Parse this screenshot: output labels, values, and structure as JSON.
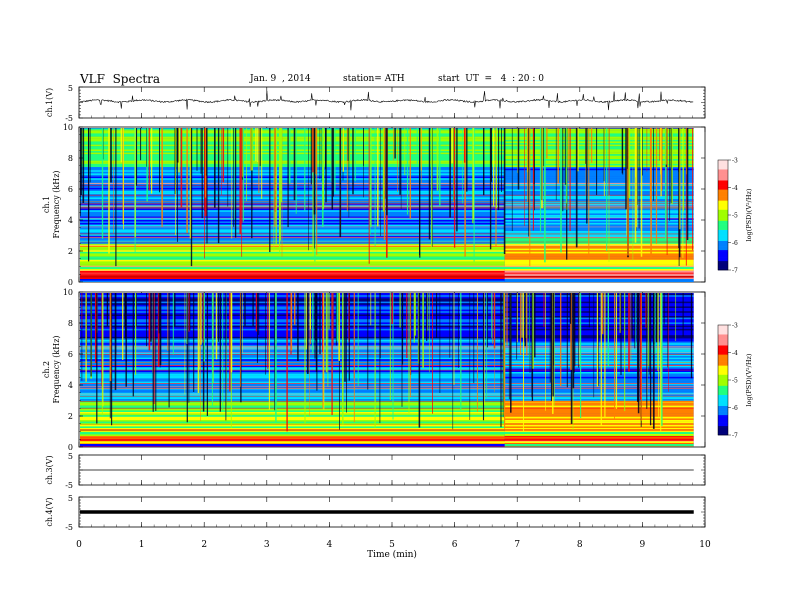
{
  "header": {
    "title": "VLF  Spectra",
    "date": "Jan. 9  , 2014",
    "station": "station= ATH",
    "start": "start  UT  =   4  : 20 : 0"
  },
  "chart_data": [
    {
      "type": "line",
      "panel": "ch.1",
      "ylabel": "ch.1(V)",
      "ylim": [
        -5,
        5
      ],
      "ytick_labels": [
        "5",
        "-5"
      ],
      "x_range_min": [
        0,
        9.82
      ],
      "series_summary": "voltage waveform fluctuating near +0.5 V with spikes"
    },
    {
      "type": "heatmap",
      "panel": "ch.1 spectrogram",
      "ylabel_top": "ch.1",
      "ylabel": "Frequency  (kHz)",
      "ylim": [
        0,
        10
      ],
      "ytick_labels": [
        "0",
        "2",
        "4",
        "6",
        "8",
        "10"
      ],
      "x_range_min": [
        0,
        9.82
      ],
      "colorbar": {
        "label": "log(PSD)(V²/Hz)",
        "range": [
          -7,
          -3
        ],
        "tick_labels": [
          "-3",
          "-4",
          "-5",
          "-6",
          "-7"
        ]
      },
      "bands": [
        {
          "from_khz": 0.2,
          "to_khz": 0.8,
          "level": -3.6
        },
        {
          "from_khz": 0.8,
          "to_khz": 2.5,
          "level": -5.0
        },
        {
          "from_khz": 2.5,
          "to_khz": 7.5,
          "level": -6.0
        },
        {
          "from_khz": 7.5,
          "to_khz": 10,
          "level": -5.2
        }
      ],
      "step_change_min": 6.8
    },
    {
      "type": "heatmap",
      "panel": "ch.2 spectrogram",
      "ylabel_top": "ch.2",
      "ylabel": "Frequency  (kHz)",
      "ylim": [
        0,
        10
      ],
      "ytick_labels": [
        "0",
        "2",
        "4",
        "6",
        "8",
        "10"
      ],
      "x_range_min": [
        0,
        9.82
      ],
      "colorbar": {
        "label": "log(PSD)(V²/Hz)",
        "range": [
          -7,
          -3
        ],
        "tick_labels": [
          "-3",
          "-4",
          "-5",
          "-6",
          "-7"
        ]
      },
      "bands": [
        {
          "from_khz": 0.2,
          "to_khz": 0.8,
          "level": -4.2
        },
        {
          "from_khz": 0.8,
          "to_khz": 3.0,
          "level": -5.0
        },
        {
          "from_khz": 3.0,
          "to_khz": 7.0,
          "level": -6.0
        },
        {
          "from_khz": 7.0,
          "to_khz": 10,
          "level": -6.5
        }
      ],
      "step_change_min": 6.8
    },
    {
      "type": "line",
      "panel": "ch.3",
      "ylabel": "ch.3(V)",
      "ylim": [
        -5,
        5
      ],
      "ytick_labels": [
        "5",
        "-5"
      ],
      "x_range_min": [
        0,
        9.82
      ],
      "level": 0
    },
    {
      "type": "line",
      "panel": "ch.4",
      "ylabel": "ch.4(V)",
      "ylim": [
        -5,
        5
      ],
      "ytick_labels": [
        "5",
        "-5"
      ],
      "x_range_min": [
        0,
        9.82
      ],
      "level": 0
    }
  ],
  "xaxis": {
    "label": "Time  (min)",
    "ticks": [
      0,
      1,
      2,
      3,
      4,
      5,
      6,
      7,
      8,
      9,
      10
    ],
    "xlim": [
      0,
      10
    ]
  },
  "colors": {
    "colormap": [
      "#00007a",
      "#0000ff",
      "#0080ff",
      "#00e0ff",
      "#20ff80",
      "#a0ff00",
      "#ffff00",
      "#ff8000",
      "#ff0000",
      "#ff9090",
      "#ffe0e0"
    ]
  }
}
